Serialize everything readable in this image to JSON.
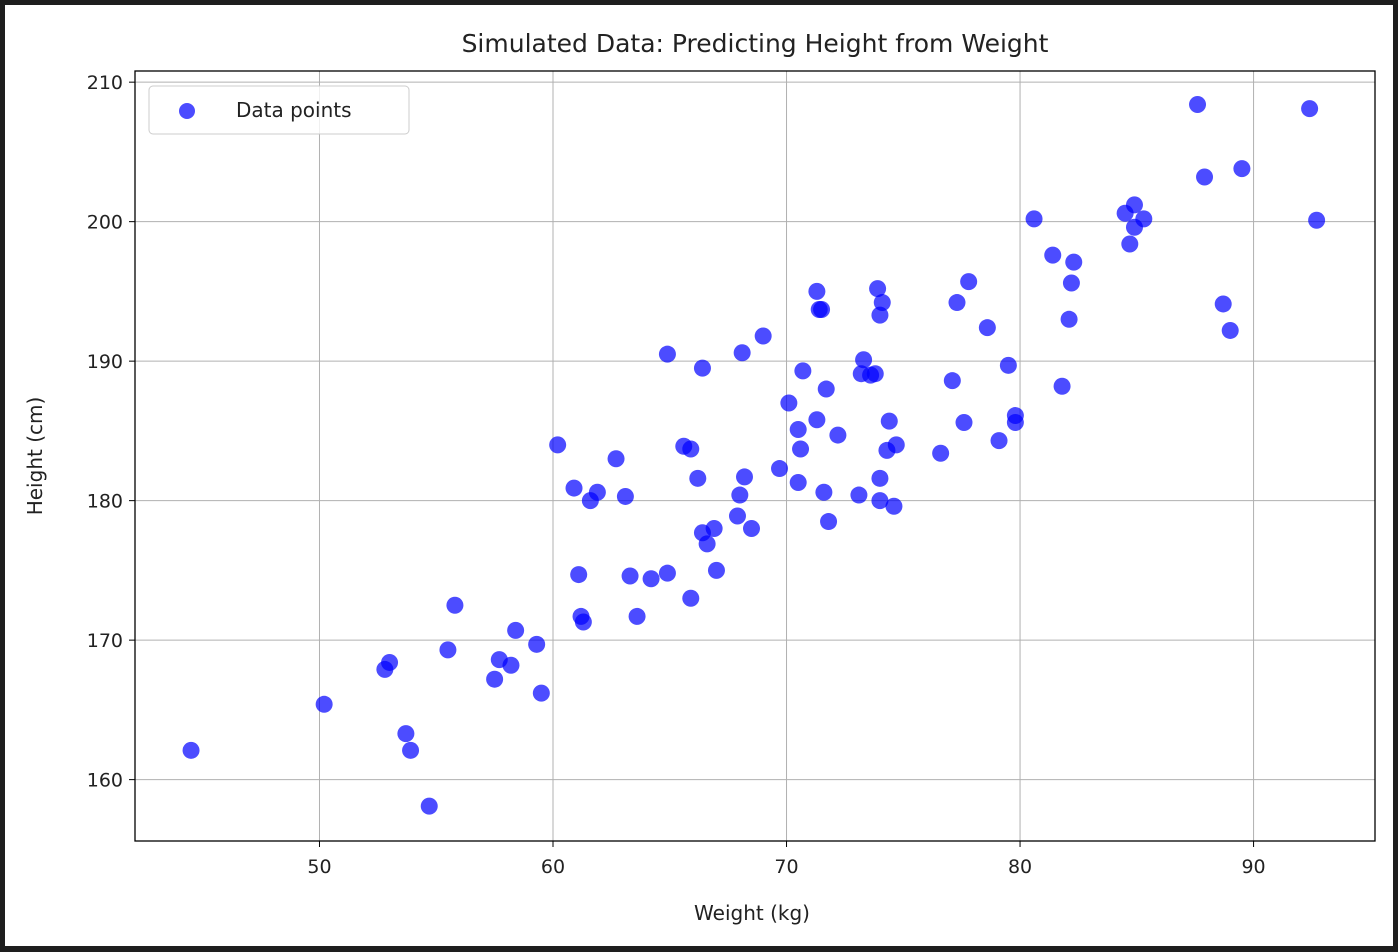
{
  "chart_data": {
    "type": "scatter",
    "title": "Simulated Data: Predicting Height from Weight",
    "xlabel": "Weight (kg)",
    "ylabel": "Height (cm)",
    "xlim": [
      42.1,
      95.2
    ],
    "ylim": [
      155.6,
      210.8
    ],
    "xticks": [
      50,
      60,
      70,
      80,
      90
    ],
    "yticks": [
      160,
      170,
      180,
      190,
      200,
      210
    ],
    "grid": true,
    "legend": {
      "placement": "top-left",
      "entries": [
        "Data points"
      ]
    },
    "series": [
      {
        "name": "Data points",
        "color": "#0000ff",
        "alpha": 0.7,
        "points": [
          [
            44.5,
            162.1
          ],
          [
            50.2,
            165.4
          ],
          [
            52.8,
            167.9
          ],
          [
            53.0,
            168.4
          ],
          [
            53.7,
            163.3
          ],
          [
            53.9,
            162.1
          ],
          [
            54.7,
            158.1
          ],
          [
            55.5,
            169.3
          ],
          [
            55.8,
            172.5
          ],
          [
            57.5,
            167.2
          ],
          [
            57.7,
            168.6
          ],
          [
            58.2,
            168.2
          ],
          [
            58.4,
            170.7
          ],
          [
            59.3,
            169.7
          ],
          [
            59.5,
            166.2
          ],
          [
            60.2,
            184.0
          ],
          [
            60.9,
            180.9
          ],
          [
            61.1,
            174.7
          ],
          [
            61.2,
            171.7
          ],
          [
            61.3,
            171.3
          ],
          [
            61.6,
            180.0
          ],
          [
            61.9,
            180.6
          ],
          [
            62.7,
            183.0
          ],
          [
            63.1,
            180.3
          ],
          [
            63.3,
            174.6
          ],
          [
            63.6,
            171.7
          ],
          [
            64.2,
            174.4
          ],
          [
            64.9,
            174.8
          ],
          [
            64.9,
            190.5
          ],
          [
            65.6,
            183.9
          ],
          [
            65.9,
            183.7
          ],
          [
            65.9,
            173.0
          ],
          [
            66.2,
            181.6
          ],
          [
            66.4,
            189.5
          ],
          [
            66.4,
            177.7
          ],
          [
            66.6,
            176.9
          ],
          [
            66.9,
            178.0
          ],
          [
            67.0,
            175.0
          ],
          [
            67.9,
            178.9
          ],
          [
            68.0,
            180.4
          ],
          [
            68.1,
            190.6
          ],
          [
            68.2,
            181.7
          ],
          [
            68.5,
            178.0
          ],
          [
            69.0,
            191.8
          ],
          [
            69.7,
            182.3
          ],
          [
            70.1,
            187.0
          ],
          [
            70.5,
            185.1
          ],
          [
            70.5,
            181.3
          ],
          [
            70.6,
            183.7
          ],
          [
            70.7,
            189.3
          ],
          [
            71.3,
            185.8
          ],
          [
            71.3,
            195.0
          ],
          [
            71.4,
            193.7
          ],
          [
            71.5,
            193.7
          ],
          [
            71.6,
            180.6
          ],
          [
            71.7,
            188.0
          ],
          [
            71.8,
            178.5
          ],
          [
            72.2,
            184.7
          ],
          [
            73.1,
            180.4
          ],
          [
            73.3,
            190.1
          ],
          [
            73.2,
            189.1
          ],
          [
            73.6,
            189.0
          ],
          [
            73.8,
            189.1
          ],
          [
            73.9,
            195.2
          ],
          [
            74.1,
            194.2
          ],
          [
            74.0,
            193.3
          ],
          [
            74.0,
            181.6
          ],
          [
            74.0,
            180.0
          ],
          [
            74.3,
            183.6
          ],
          [
            74.4,
            185.7
          ],
          [
            74.6,
            179.6
          ],
          [
            74.7,
            184.0
          ],
          [
            76.6,
            183.4
          ],
          [
            77.1,
            188.6
          ],
          [
            77.3,
            194.2
          ],
          [
            77.6,
            185.6
          ],
          [
            77.8,
            195.7
          ],
          [
            78.6,
            192.4
          ],
          [
            79.1,
            184.3
          ],
          [
            79.5,
            189.7
          ],
          [
            79.8,
            186.1
          ],
          [
            79.8,
            185.6
          ],
          [
            80.6,
            200.2
          ],
          [
            81.4,
            197.6
          ],
          [
            81.8,
            188.2
          ],
          [
            82.1,
            193.0
          ],
          [
            82.2,
            195.6
          ],
          [
            82.3,
            197.1
          ],
          [
            84.5,
            200.6
          ],
          [
            84.7,
            198.4
          ],
          [
            84.9,
            199.6
          ],
          [
            84.9,
            201.2
          ],
          [
            85.3,
            200.2
          ],
          [
            87.6,
            208.4
          ],
          [
            87.9,
            203.2
          ],
          [
            88.7,
            194.1
          ],
          [
            89.0,
            192.2
          ],
          [
            89.5,
            203.8
          ],
          [
            92.4,
            208.1
          ],
          [
            92.7,
            200.1
          ]
        ]
      }
    ]
  }
}
